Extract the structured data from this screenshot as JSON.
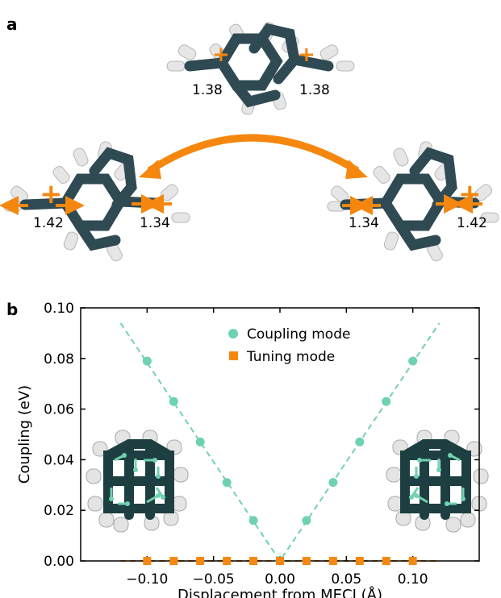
{
  "panel_a": {
    "label": "a",
    "top_molecule": {
      "left_bond": "1.38",
      "right_bond": "1.38",
      "charge": "+"
    },
    "left_molecule": {
      "left_bond": "1.42",
      "right_bond": "1.34",
      "charge": "+"
    },
    "right_molecule": {
      "left_bond": "1.34",
      "right_bond": "1.42",
      "charge": "+"
    },
    "colors": {
      "orange": "#f5870f",
      "carbon": "#2f4a52",
      "hydrogen": "#e8e8e8"
    }
  },
  "panel_b": {
    "label": "b",
    "legend": [
      "Coupling mode",
      "Tuning mode"
    ],
    "colors": {
      "coupling": "#6fd2ae",
      "tuning": "#f5870f"
    }
  },
  "chart_data": {
    "type": "scatter",
    "xlabel": "Displacement from MECI (Å)",
    "ylabel": "Coupling (eV)",
    "xlim": [
      -0.15,
      0.15
    ],
    "ylim": [
      0.0,
      0.1
    ],
    "xticks": [
      "−0.10",
      "−0.05",
      "0.00",
      "0.05",
      "0.10"
    ],
    "xtick_values": [
      -0.1,
      -0.05,
      0.0,
      0.05,
      0.1
    ],
    "yticks": [
      "0.00",
      "0.02",
      "0.04",
      "0.06",
      "0.08",
      "0.10"
    ],
    "ytick_values": [
      0.0,
      0.02,
      0.04,
      0.06,
      0.08,
      0.1
    ],
    "series": [
      {
        "name": "Coupling mode",
        "marker": "circle",
        "x": [
          -0.1,
          -0.08,
          -0.06,
          -0.04,
          -0.02,
          0.0,
          0.02,
          0.04,
          0.06,
          0.08,
          0.1
        ],
        "y": [
          0.079,
          0.063,
          0.047,
          0.031,
          0.016,
          0.0,
          0.016,
          0.031,
          0.047,
          0.063,
          0.079
        ]
      },
      {
        "name": "Tuning mode",
        "marker": "square",
        "x": [
          -0.1,
          -0.08,
          -0.06,
          -0.04,
          -0.02,
          0.0,
          0.02,
          0.04,
          0.06,
          0.08,
          0.1
        ],
        "y": [
          0.0,
          0.0,
          0.0,
          0.0,
          0.0,
          0.0,
          0.0,
          0.0,
          0.0,
          0.0,
          0.0
        ]
      }
    ],
    "fit_lines": [
      {
        "series": "Coupling mode",
        "x": [
          -0.12,
          0.0,
          0.12
        ],
        "y": [
          0.094,
          0.0,
          0.094
        ]
      },
      {
        "series": "Tuning mode",
        "x": [
          -0.12,
          0.12
        ],
        "y": [
          0.0,
          0.0
        ]
      }
    ],
    "legend_position": "top-center",
    "grid": false
  }
}
